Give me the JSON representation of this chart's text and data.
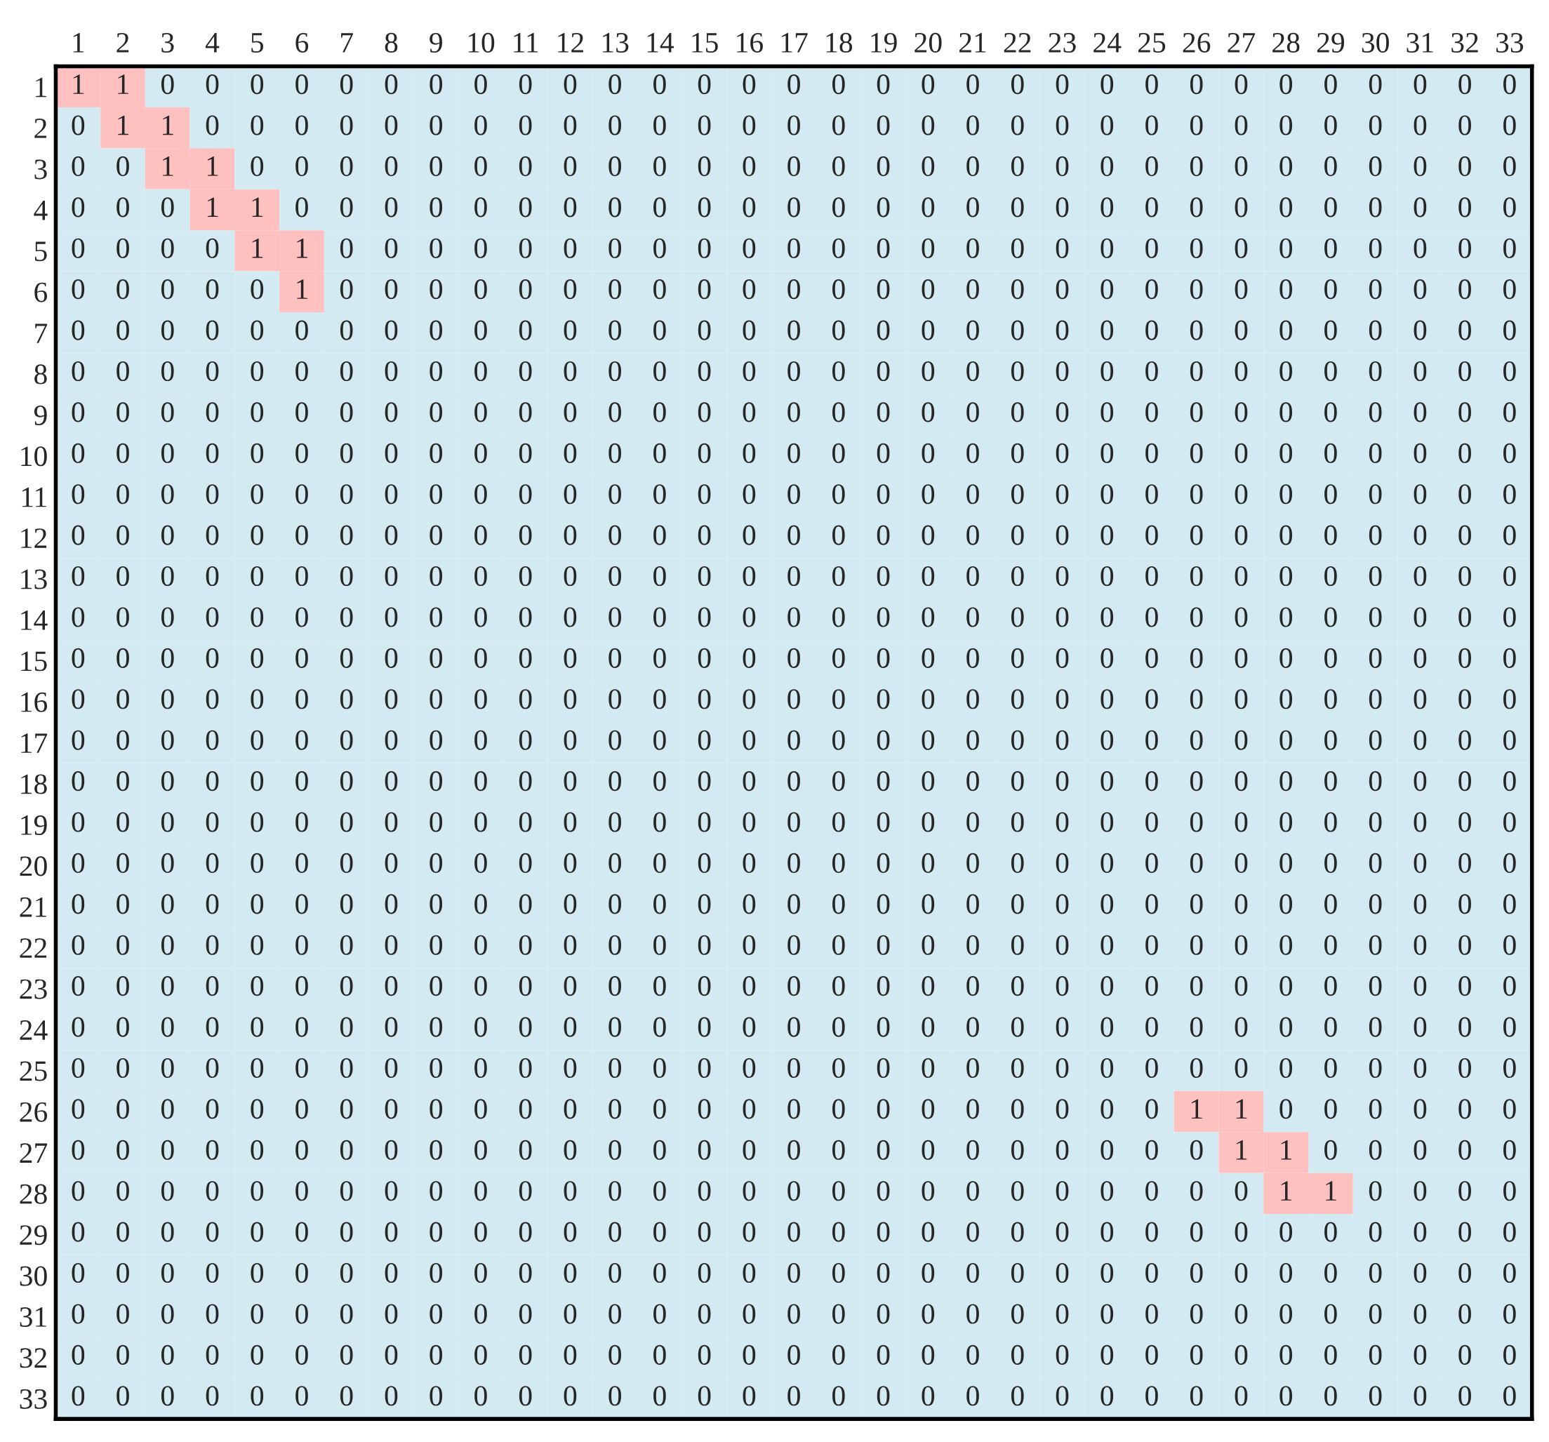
{
  "chart_data": {
    "type": "heatmap",
    "categories": [
      "1",
      "2",
      "3",
      "4",
      "5",
      "6",
      "7",
      "8",
      "9",
      "10",
      "11",
      "12",
      "13",
      "14",
      "15",
      "16",
      "17",
      "18",
      "19",
      "20",
      "21",
      "22",
      "23",
      "24",
      "25",
      "26",
      "27",
      "28",
      "29",
      "30",
      "31",
      "32",
      "33"
    ],
    "y_categories": [
      "1",
      "2",
      "3",
      "4",
      "5",
      "6",
      "7",
      "8",
      "9",
      "10",
      "11",
      "12",
      "13",
      "14",
      "15",
      "16",
      "17",
      "18",
      "19",
      "20",
      "21",
      "22",
      "23",
      "24",
      "25",
      "26",
      "27",
      "28",
      "29",
      "30",
      "31",
      "32",
      "33"
    ],
    "cells": [
      [
        1,
        1,
        0,
        0,
        0,
        0,
        0,
        0,
        0,
        0,
        0,
        0,
        0,
        0,
        0,
        0,
        0,
        0,
        0,
        0,
        0,
        0,
        0,
        0,
        0,
        0,
        0,
        0,
        0,
        0,
        0,
        0,
        0
      ],
      [
        0,
        1,
        1,
        0,
        0,
        0,
        0,
        0,
        0,
        0,
        0,
        0,
        0,
        0,
        0,
        0,
        0,
        0,
        0,
        0,
        0,
        0,
        0,
        0,
        0,
        0,
        0,
        0,
        0,
        0,
        0,
        0,
        0
      ],
      [
        0,
        0,
        1,
        1,
        0,
        0,
        0,
        0,
        0,
        0,
        0,
        0,
        0,
        0,
        0,
        0,
        0,
        0,
        0,
        0,
        0,
        0,
        0,
        0,
        0,
        0,
        0,
        0,
        0,
        0,
        0,
        0,
        0
      ],
      [
        0,
        0,
        0,
        1,
        1,
        0,
        0,
        0,
        0,
        0,
        0,
        0,
        0,
        0,
        0,
        0,
        0,
        0,
        0,
        0,
        0,
        0,
        0,
        0,
        0,
        0,
        0,
        0,
        0,
        0,
        0,
        0,
        0
      ],
      [
        0,
        0,
        0,
        0,
        1,
        1,
        0,
        0,
        0,
        0,
        0,
        0,
        0,
        0,
        0,
        0,
        0,
        0,
        0,
        0,
        0,
        0,
        0,
        0,
        0,
        0,
        0,
        0,
        0,
        0,
        0,
        0,
        0
      ],
      [
        0,
        0,
        0,
        0,
        0,
        1,
        0,
        0,
        0,
        0,
        0,
        0,
        0,
        0,
        0,
        0,
        0,
        0,
        0,
        0,
        0,
        0,
        0,
        0,
        0,
        0,
        0,
        0,
        0,
        0,
        0,
        0,
        0
      ],
      [
        0,
        0,
        0,
        0,
        0,
        0,
        0,
        0,
        0,
        0,
        0,
        0,
        0,
        0,
        0,
        0,
        0,
        0,
        0,
        0,
        0,
        0,
        0,
        0,
        0,
        0,
        0,
        0,
        0,
        0,
        0,
        0,
        0
      ],
      [
        0,
        0,
        0,
        0,
        0,
        0,
        0,
        0,
        0,
        0,
        0,
        0,
        0,
        0,
        0,
        0,
        0,
        0,
        0,
        0,
        0,
        0,
        0,
        0,
        0,
        0,
        0,
        0,
        0,
        0,
        0,
        0,
        0
      ],
      [
        0,
        0,
        0,
        0,
        0,
        0,
        0,
        0,
        0,
        0,
        0,
        0,
        0,
        0,
        0,
        0,
        0,
        0,
        0,
        0,
        0,
        0,
        0,
        0,
        0,
        0,
        0,
        0,
        0,
        0,
        0,
        0,
        0
      ],
      [
        0,
        0,
        0,
        0,
        0,
        0,
        0,
        0,
        0,
        0,
        0,
        0,
        0,
        0,
        0,
        0,
        0,
        0,
        0,
        0,
        0,
        0,
        0,
        0,
        0,
        0,
        0,
        0,
        0,
        0,
        0,
        0,
        0
      ],
      [
        0,
        0,
        0,
        0,
        0,
        0,
        0,
        0,
        0,
        0,
        0,
        0,
        0,
        0,
        0,
        0,
        0,
        0,
        0,
        0,
        0,
        0,
        0,
        0,
        0,
        0,
        0,
        0,
        0,
        0,
        0,
        0,
        0
      ],
      [
        0,
        0,
        0,
        0,
        0,
        0,
        0,
        0,
        0,
        0,
        0,
        0,
        0,
        0,
        0,
        0,
        0,
        0,
        0,
        0,
        0,
        0,
        0,
        0,
        0,
        0,
        0,
        0,
        0,
        0,
        0,
        0,
        0
      ],
      [
        0,
        0,
        0,
        0,
        0,
        0,
        0,
        0,
        0,
        0,
        0,
        0,
        0,
        0,
        0,
        0,
        0,
        0,
        0,
        0,
        0,
        0,
        0,
        0,
        0,
        0,
        0,
        0,
        0,
        0,
        0,
        0,
        0
      ],
      [
        0,
        0,
        0,
        0,
        0,
        0,
        0,
        0,
        0,
        0,
        0,
        0,
        0,
        0,
        0,
        0,
        0,
        0,
        0,
        0,
        0,
        0,
        0,
        0,
        0,
        0,
        0,
        0,
        0,
        0,
        0,
        0,
        0
      ],
      [
        0,
        0,
        0,
        0,
        0,
        0,
        0,
        0,
        0,
        0,
        0,
        0,
        0,
        0,
        0,
        0,
        0,
        0,
        0,
        0,
        0,
        0,
        0,
        0,
        0,
        0,
        0,
        0,
        0,
        0,
        0,
        0,
        0
      ],
      [
        0,
        0,
        0,
        0,
        0,
        0,
        0,
        0,
        0,
        0,
        0,
        0,
        0,
        0,
        0,
        0,
        0,
        0,
        0,
        0,
        0,
        0,
        0,
        0,
        0,
        0,
        0,
        0,
        0,
        0,
        0,
        0,
        0
      ],
      [
        0,
        0,
        0,
        0,
        0,
        0,
        0,
        0,
        0,
        0,
        0,
        0,
        0,
        0,
        0,
        0,
        0,
        0,
        0,
        0,
        0,
        0,
        0,
        0,
        0,
        0,
        0,
        0,
        0,
        0,
        0,
        0,
        0
      ],
      [
        0,
        0,
        0,
        0,
        0,
        0,
        0,
        0,
        0,
        0,
        0,
        0,
        0,
        0,
        0,
        0,
        0,
        0,
        0,
        0,
        0,
        0,
        0,
        0,
        0,
        0,
        0,
        0,
        0,
        0,
        0,
        0,
        0
      ],
      [
        0,
        0,
        0,
        0,
        0,
        0,
        0,
        0,
        0,
        0,
        0,
        0,
        0,
        0,
        0,
        0,
        0,
        0,
        0,
        0,
        0,
        0,
        0,
        0,
        0,
        0,
        0,
        0,
        0,
        0,
        0,
        0,
        0
      ],
      [
        0,
        0,
        0,
        0,
        0,
        0,
        0,
        0,
        0,
        0,
        0,
        0,
        0,
        0,
        0,
        0,
        0,
        0,
        0,
        0,
        0,
        0,
        0,
        0,
        0,
        0,
        0,
        0,
        0,
        0,
        0,
        0,
        0
      ],
      [
        0,
        0,
        0,
        0,
        0,
        0,
        0,
        0,
        0,
        0,
        0,
        0,
        0,
        0,
        0,
        0,
        0,
        0,
        0,
        0,
        0,
        0,
        0,
        0,
        0,
        0,
        0,
        0,
        0,
        0,
        0,
        0,
        0
      ],
      [
        0,
        0,
        0,
        0,
        0,
        0,
        0,
        0,
        0,
        0,
        0,
        0,
        0,
        0,
        0,
        0,
        0,
        0,
        0,
        0,
        0,
        0,
        0,
        0,
        0,
        0,
        0,
        0,
        0,
        0,
        0,
        0,
        0
      ],
      [
        0,
        0,
        0,
        0,
        0,
        0,
        0,
        0,
        0,
        0,
        0,
        0,
        0,
        0,
        0,
        0,
        0,
        0,
        0,
        0,
        0,
        0,
        0,
        0,
        0,
        0,
        0,
        0,
        0,
        0,
        0,
        0,
        0
      ],
      [
        0,
        0,
        0,
        0,
        0,
        0,
        0,
        0,
        0,
        0,
        0,
        0,
        0,
        0,
        0,
        0,
        0,
        0,
        0,
        0,
        0,
        0,
        0,
        0,
        0,
        0,
        0,
        0,
        0,
        0,
        0,
        0,
        0
      ],
      [
        0,
        0,
        0,
        0,
        0,
        0,
        0,
        0,
        0,
        0,
        0,
        0,
        0,
        0,
        0,
        0,
        0,
        0,
        0,
        0,
        0,
        0,
        0,
        0,
        0,
        0,
        0,
        0,
        0,
        0,
        0,
        0,
        0
      ],
      [
        0,
        0,
        0,
        0,
        0,
        0,
        0,
        0,
        0,
        0,
        0,
        0,
        0,
        0,
        0,
        0,
        0,
        0,
        0,
        0,
        0,
        0,
        0,
        0,
        0,
        1,
        1,
        0,
        0,
        0,
        0,
        0,
        0
      ],
      [
        0,
        0,
        0,
        0,
        0,
        0,
        0,
        0,
        0,
        0,
        0,
        0,
        0,
        0,
        0,
        0,
        0,
        0,
        0,
        0,
        0,
        0,
        0,
        0,
        0,
        0,
        1,
        1,
        0,
        0,
        0,
        0,
        0
      ],
      [
        0,
        0,
        0,
        0,
        0,
        0,
        0,
        0,
        0,
        0,
        0,
        0,
        0,
        0,
        0,
        0,
        0,
        0,
        0,
        0,
        0,
        0,
        0,
        0,
        0,
        0,
        0,
        1,
        1,
        0,
        0,
        0,
        0
      ],
      [
        0,
        0,
        0,
        0,
        0,
        0,
        0,
        0,
        0,
        0,
        0,
        0,
        0,
        0,
        0,
        0,
        0,
        0,
        0,
        0,
        0,
        0,
        0,
        0,
        0,
        0,
        0,
        0,
        0,
        0,
        0,
        0,
        0
      ],
      [
        0,
        0,
        0,
        0,
        0,
        0,
        0,
        0,
        0,
        0,
        0,
        0,
        0,
        0,
        0,
        0,
        0,
        0,
        0,
        0,
        0,
        0,
        0,
        0,
        0,
        0,
        0,
        0,
        0,
        0,
        0,
        0,
        0
      ],
      [
        0,
        0,
        0,
        0,
        0,
        0,
        0,
        0,
        0,
        0,
        0,
        0,
        0,
        0,
        0,
        0,
        0,
        0,
        0,
        0,
        0,
        0,
        0,
        0,
        0,
        0,
        0,
        0,
        0,
        0,
        0,
        0,
        0
      ],
      [
        0,
        0,
        0,
        0,
        0,
        0,
        0,
        0,
        0,
        0,
        0,
        0,
        0,
        0,
        0,
        0,
        0,
        0,
        0,
        0,
        0,
        0,
        0,
        0,
        0,
        0,
        0,
        0,
        0,
        0,
        0,
        0,
        0
      ],
      [
        0,
        0,
        0,
        0,
        0,
        0,
        0,
        0,
        0,
        0,
        0,
        0,
        0,
        0,
        0,
        0,
        0,
        0,
        0,
        0,
        0,
        0,
        0,
        0,
        0,
        0,
        0,
        0,
        0,
        0,
        0,
        0,
        0
      ]
    ],
    "colors": [
      "#d4eaf2",
      "#ffc0c0"
    ],
    "data_labels": true
  }
}
